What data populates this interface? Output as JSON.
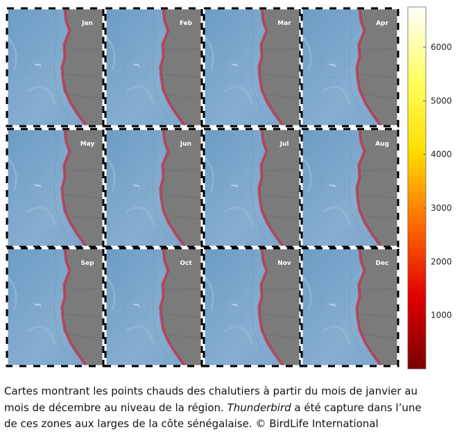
{
  "figure": {
    "months": [
      "Jan",
      "Feb",
      "Mar",
      "Apr",
      "May",
      "Jun",
      "Jul",
      "Aug",
      "Sep",
      "Oct",
      "Nov",
      "Dec"
    ],
    "colorbar": {
      "lim": [
        0,
        6750
      ],
      "ticks": [
        1000,
        2000,
        3000,
        4000,
        5000,
        6000
      ],
      "colormap": [
        "#7a0000",
        "#e00000",
        "#ff6a00",
        "#ffdd00",
        "#ffff60",
        "#ffffff"
      ]
    },
    "caption": {
      "line1": "Cartes montrant les points chauds des chalutiers à partir du mois de janvier au",
      "line2": {
        "before": "mois de décembre au niveau de la région.",
        "italic": "Thunderbird",
        "after": "a été capture dans l’une"
      },
      "line3": "de ces zones aux larges de la côte sénégalaise. © BirdLife International"
    }
  }
}
